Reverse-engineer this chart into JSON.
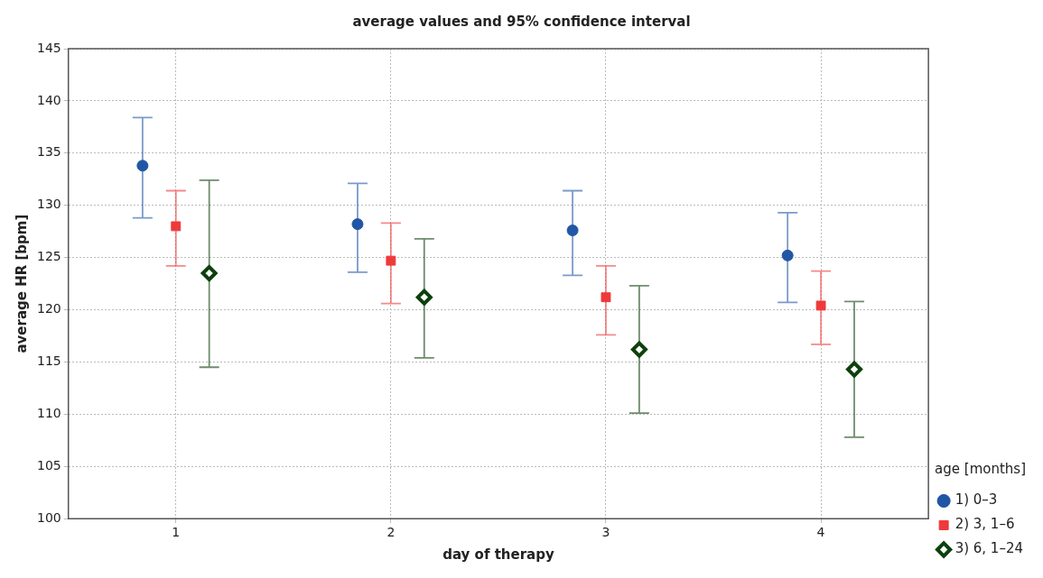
{
  "chart_data": {
    "type": "scatter",
    "title": "average values and 95% confidence interval",
    "xlabel": "day of therapy",
    "ylabel": "average HR [bpm]",
    "legend_title": "age [months]",
    "categories": [
      "1",
      "2",
      "3",
      "4"
    ],
    "ylim": [
      100,
      145
    ],
    "yticks": [
      100,
      105,
      110,
      115,
      120,
      125,
      130,
      135,
      140,
      145
    ],
    "grid": true,
    "legend": "bottom right",
    "series": [
      {
        "name": "1) 0–3",
        "color": "#2156a5",
        "marker": "circle",
        "values": [
          133.8,
          128.2,
          127.6,
          125.2
        ],
        "errors": [
          [
            128.8,
            138.4
          ],
          [
            123.6,
            132.1
          ],
          [
            123.3,
            131.4
          ],
          [
            120.7,
            129.3
          ]
        ]
      },
      {
        "name": "2) 3, 1–6",
        "color": "#ee3a3a",
        "marker": "square",
        "values": [
          128.0,
          124.7,
          121.2,
          120.4
        ],
        "errors": [
          [
            124.2,
            131.4
          ],
          [
            120.6,
            128.3
          ],
          [
            117.6,
            124.2
          ],
          [
            116.7,
            123.7
          ]
        ]
      },
      {
        "name": "3) 6, 1–24",
        "color": "#0d400d",
        "marker": "diamond",
        "values": [
          123.5,
          121.2,
          116.2,
          114.3
        ],
        "errors": [
          [
            114.5,
            132.4
          ],
          [
            115.4,
            126.8
          ],
          [
            110.1,
            122.3
          ],
          [
            107.8,
            120.8
          ]
        ]
      }
    ]
  }
}
